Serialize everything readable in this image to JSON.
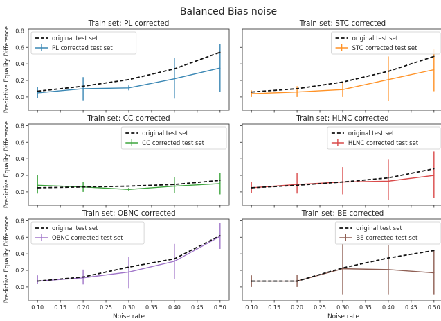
{
  "figure_title": "Balanced Bias noise",
  "shared_ylabel": "Predictive Equality Difference",
  "shared_xlabel": "Noise rate",
  "original_label": "original test set",
  "original_color": "#111111",
  "x_ticks": [
    "0.10",
    "0.15",
    "0.20",
    "0.25",
    "0.30",
    "0.35",
    "0.40",
    "0.45",
    "0.50"
  ],
  "y_ticks": [
    "0.0",
    "0.2",
    "0.4",
    "0.6",
    "0.8"
  ],
  "chart_data": [
    {
      "type": "line",
      "title": "Train set: PL corrected",
      "x": [
        0.1,
        0.2,
        0.3,
        0.4,
        0.5
      ],
      "xlim": [
        0.08,
        0.52
      ],
      "ylim": [
        -0.16,
        0.82
      ],
      "ylabel": "Predictive Equality Difference",
      "xlabel": "",
      "legend": "top-left",
      "series": [
        {
          "name": "original test set",
          "color": "#111111",
          "style": "dashed",
          "values": [
            0.07,
            0.13,
            0.21,
            0.34,
            0.54
          ]
        },
        {
          "name": "PL corrected test set",
          "color": "#3a87b4",
          "style": "solid",
          "values": [
            0.05,
            0.1,
            0.11,
            0.22,
            0.35
          ],
          "error_low": [
            -0.01,
            -0.04,
            0.08,
            -0.02,
            0.06
          ],
          "error_high": [
            0.12,
            0.24,
            0.14,
            0.47,
            0.64
          ]
        }
      ]
    },
    {
      "type": "line",
      "title": "Train set: STC corrected",
      "x": [
        0.1,
        0.2,
        0.3,
        0.4,
        0.5
      ],
      "xlim": [
        0.08,
        0.52
      ],
      "ylim": [
        -0.16,
        0.82
      ],
      "ylabel": "",
      "xlabel": "",
      "legend": "top-right",
      "series": [
        {
          "name": "original test set",
          "color": "#111111",
          "style": "dashed",
          "values": [
            0.06,
            0.1,
            0.18,
            0.31,
            0.49
          ]
        },
        {
          "name": "STC corrected test set",
          "color": "#ff9226",
          "style": "solid",
          "values": [
            0.04,
            0.06,
            0.09,
            0.21,
            0.33
          ],
          "error_low": [
            0.0,
            0.0,
            0.0,
            -0.05,
            0.07
          ],
          "error_high": [
            0.08,
            0.13,
            0.17,
            0.49,
            0.58
          ]
        }
      ]
    },
    {
      "type": "line",
      "title": "Train set: CC corrected",
      "x": [
        0.1,
        0.2,
        0.3,
        0.4,
        0.5
      ],
      "xlim": [
        0.08,
        0.52
      ],
      "ylim": [
        -0.16,
        0.82
      ],
      "ylabel": "Predictive Equality Difference",
      "xlabel": "",
      "legend": "top-right",
      "series": [
        {
          "name": "original test set",
          "color": "#111111",
          "style": "dashed",
          "values": [
            0.05,
            0.06,
            0.07,
            0.09,
            0.14
          ]
        },
        {
          "name": "CC corrected test set",
          "color": "#3ea53e",
          "style": "solid",
          "values": [
            0.08,
            0.06,
            0.03,
            0.07,
            0.1
          ],
          "error_low": [
            -0.02,
            0.0,
            0.01,
            -0.01,
            -0.03
          ],
          "error_high": [
            0.2,
            0.12,
            0.05,
            0.18,
            0.23
          ]
        }
      ]
    },
    {
      "type": "line",
      "title": "Train set: HLNC corrected",
      "x": [
        0.1,
        0.2,
        0.3,
        0.4,
        0.5
      ],
      "xlim": [
        0.08,
        0.52
      ],
      "ylim": [
        -0.16,
        0.82
      ],
      "ylabel": "",
      "xlabel": "",
      "legend": "top-right",
      "series": [
        {
          "name": "original test set",
          "color": "#111111",
          "style": "dashed",
          "values": [
            0.05,
            0.08,
            0.12,
            0.17,
            0.28
          ]
        },
        {
          "name": "HLNC corrected test set",
          "color": "#d94a4a",
          "style": "solid",
          "values": [
            0.05,
            0.09,
            0.12,
            0.13,
            0.2
          ],
          "error_low": [
            -0.01,
            -0.02,
            -0.03,
            -0.1,
            -0.07
          ],
          "error_high": [
            0.12,
            0.23,
            0.3,
            0.39,
            0.49
          ]
        }
      ]
    },
    {
      "type": "line",
      "title": "Train set: OBNC corrected",
      "x": [
        0.1,
        0.2,
        0.3,
        0.4,
        0.5
      ],
      "xlim": [
        0.08,
        0.52
      ],
      "ylim": [
        -0.16,
        0.82
      ],
      "ylabel": "Predictive Equality Difference",
      "xlabel": "Noise rate",
      "legend": "top-left",
      "series": [
        {
          "name": "original test set",
          "color": "#111111",
          "style": "dashed",
          "values": [
            0.07,
            0.12,
            0.24,
            0.34,
            0.62
          ]
        },
        {
          "name": "OBNC corrected test set",
          "color": "#a075c9",
          "style": "solid",
          "values": [
            0.07,
            0.11,
            0.18,
            0.31,
            0.61
          ],
          "error_low": [
            0.04,
            0.03,
            -0.02,
            0.1,
            0.46
          ],
          "error_high": [
            0.14,
            0.21,
            0.36,
            0.52,
            0.77
          ]
        }
      ]
    },
    {
      "type": "line",
      "title": "Train set: BE corrected",
      "x": [
        0.1,
        0.2,
        0.3,
        0.4,
        0.5
      ],
      "xlim": [
        0.08,
        0.52
      ],
      "ylim": [
        -0.16,
        0.82
      ],
      "ylabel": "",
      "xlabel": "Noise rate",
      "legend": "top-right",
      "series": [
        {
          "name": "original test set",
          "color": "#111111",
          "style": "dashed",
          "values": [
            0.07,
            0.07,
            0.23,
            0.35,
            0.44
          ]
        },
        {
          "name": "BE corrected test set",
          "color": "#8f5f54",
          "style": "solid",
          "values": [
            0.07,
            0.07,
            0.22,
            0.21,
            0.17
          ],
          "error_low": [
            0.0,
            0.0,
            -0.09,
            -0.09,
            -0.09
          ],
          "error_high": [
            0.14,
            0.15,
            0.52,
            0.51,
            0.44
          ]
        }
      ]
    }
  ]
}
